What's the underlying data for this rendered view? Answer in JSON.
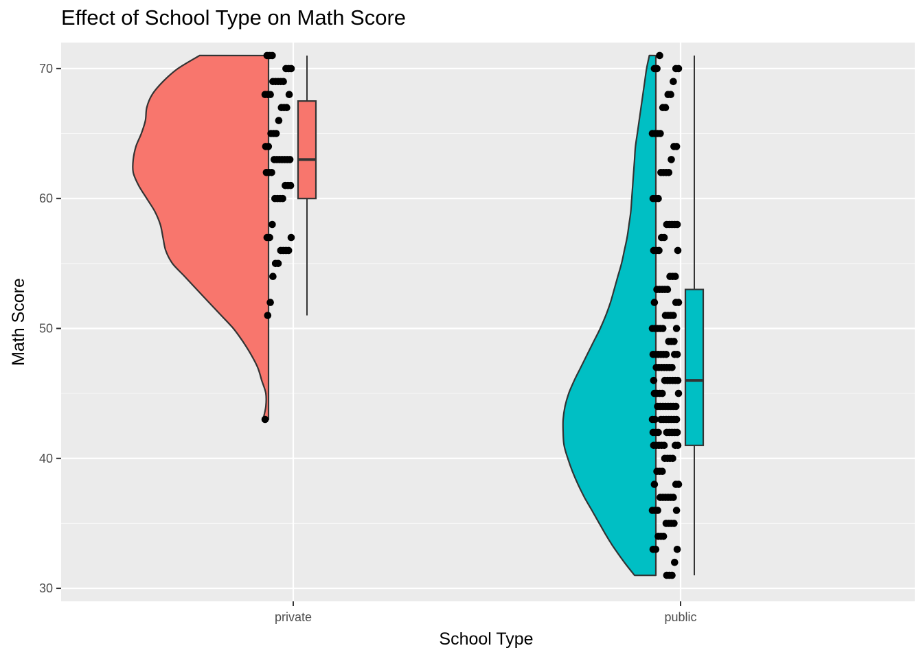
{
  "chart_data": {
    "type": "raincloud",
    "title": "Effect of School Type on Math Score",
    "xlabel": "School Type",
    "ylabel": "Math Score",
    "categories": [
      "private",
      "public"
    ],
    "ylim": [
      29,
      72
    ],
    "yticks": [
      30,
      40,
      50,
      60,
      70
    ],
    "grid": true,
    "legend": "none",
    "colors": {
      "private": "#F8766D",
      "public": "#00BFC4",
      "panel": "#EBEBEB",
      "grid": "#FFFFFF",
      "outline": "#333333",
      "points": "#000000"
    },
    "groups": [
      {
        "name": "private",
        "color": "#F8766D",
        "box": {
          "min": 51,
          "q1": 60,
          "median": 63,
          "q3": 67.5,
          "max": 71,
          "outliers": [
            43
          ]
        },
        "density": {
          "y": [
            43,
            44,
            45,
            46,
            47,
            48,
            49,
            50,
            51,
            52,
            53,
            54,
            55,
            56,
            57,
            58,
            59,
            60,
            61,
            62,
            63,
            64,
            65,
            66,
            67,
            68,
            69,
            70,
            71
          ],
          "w": [
            0.04,
            0.02,
            0.02,
            0.05,
            0.08,
            0.13,
            0.19,
            0.26,
            0.35,
            0.44,
            0.53,
            0.62,
            0.71,
            0.76,
            0.78,
            0.8,
            0.84,
            0.9,
            0.96,
            1.0,
            1.0,
            0.98,
            0.94,
            0.91,
            0.9,
            0.86,
            0.78,
            0.67,
            0.51
          ]
        },
        "points": [
          71,
          71,
          71,
          70,
          70,
          70,
          69,
          69,
          69,
          69,
          69,
          68,
          68,
          68,
          68,
          67,
          67,
          67,
          66,
          65,
          65,
          65,
          64,
          64,
          63,
          63,
          63,
          63,
          63,
          63,
          63,
          62,
          62,
          62,
          61,
          61,
          61,
          60,
          60,
          60,
          60,
          58,
          57,
          57,
          57,
          56,
          56,
          56,
          56,
          55,
          55,
          54,
          52,
          51,
          43
        ]
      },
      {
        "name": "public",
        "color": "#00BFC4",
        "box": {
          "min": 31,
          "q1": 41,
          "median": 46,
          "q3": 53,
          "max": 71,
          "outliers": []
        },
        "density": {
          "y": [
            31,
            32,
            33,
            34,
            35,
            36,
            37,
            38,
            39,
            40,
            41,
            42,
            43,
            44,
            45,
            46,
            47,
            48,
            49,
            50,
            51,
            52,
            53,
            54,
            55,
            56,
            57,
            58,
            59,
            60,
            61,
            62,
            63,
            64,
            65,
            66,
            67,
            68,
            69,
            70,
            71
          ],
          "w": [
            0.23,
            0.34,
            0.44,
            0.53,
            0.61,
            0.69,
            0.77,
            0.84,
            0.9,
            0.95,
            0.99,
            1.0,
            1.0,
            0.98,
            0.94,
            0.88,
            0.81,
            0.74,
            0.67,
            0.6,
            0.54,
            0.49,
            0.45,
            0.41,
            0.37,
            0.34,
            0.31,
            0.29,
            0.27,
            0.26,
            0.25,
            0.24,
            0.23,
            0.22,
            0.2,
            0.18,
            0.16,
            0.14,
            0.12,
            0.1,
            0.07
          ]
        },
        "points": [
          71,
          70,
          70,
          70,
          70,
          69,
          68,
          68,
          67,
          67,
          65,
          65,
          65,
          65,
          64,
          64,
          63,
          62,
          62,
          62,
          62,
          60,
          60,
          60,
          58,
          58,
          58,
          58,
          58,
          57,
          57,
          56,
          56,
          56,
          56,
          54,
          54,
          54,
          53,
          53,
          53,
          53,
          53,
          52,
          52,
          52,
          51,
          51,
          51,
          51,
          50,
          50,
          50,
          50,
          50,
          50,
          49,
          49,
          49,
          48,
          48,
          48,
          48,
          48,
          48,
          48,
          48,
          47,
          47,
          47,
          47,
          47,
          47,
          47,
          46,
          46,
          46,
          46,
          46,
          46,
          46,
          45,
          45,
          45,
          45,
          45,
          44,
          44,
          44,
          44,
          44,
          44,
          44,
          44,
          43,
          43,
          43,
          43,
          43,
          43,
          43,
          43,
          43,
          42,
          42,
          42,
          42,
          42,
          42,
          42,
          42,
          41,
          41,
          41,
          41,
          41,
          41,
          41,
          40,
          40,
          40,
          40,
          39,
          39,
          39,
          38,
          38,
          38,
          37,
          37,
          37,
          37,
          37,
          37,
          36,
          36,
          36,
          36,
          35,
          35,
          35,
          35,
          34,
          34,
          34,
          33,
          33,
          33,
          32,
          31,
          31,
          31
        ]
      }
    ]
  }
}
